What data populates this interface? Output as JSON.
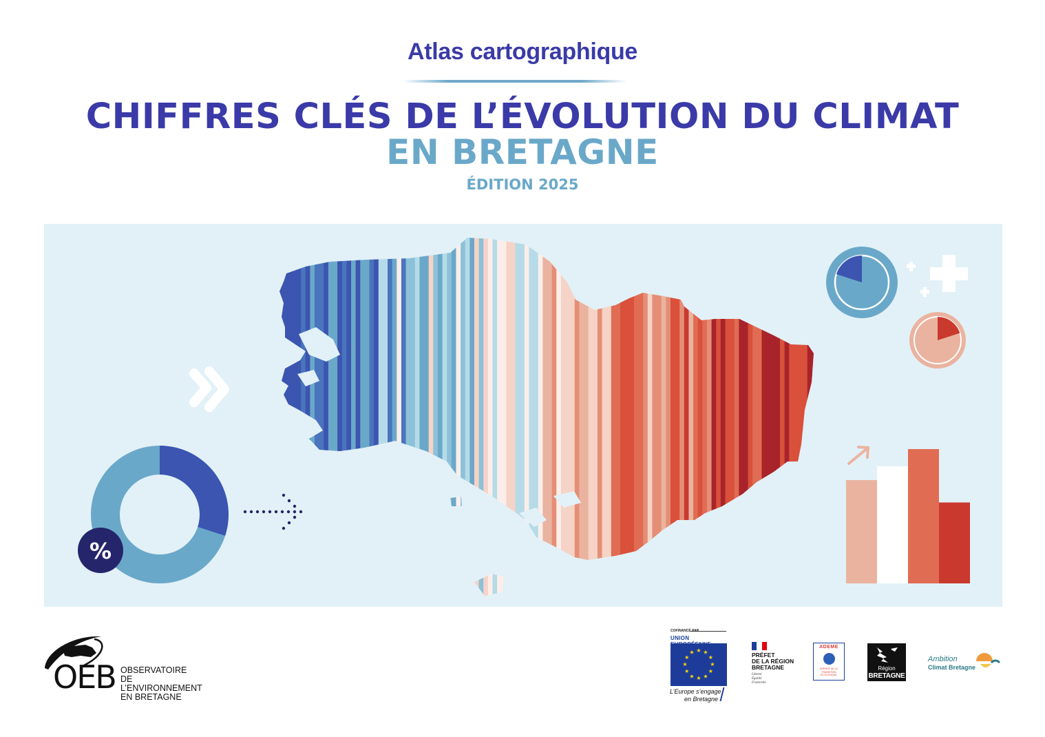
{
  "header": {
    "subtitle": "Atlas cartographique",
    "title_line1": "CHIFFRES CLÉS DE L’ÉVOLUTION DU CLIMAT",
    "title_line2": "EN BRETAGNE",
    "edition": "ÉDITION 2025"
  },
  "illustration": {
    "percent_badge": "%",
    "colors": {
      "deep_blue": "#3b55b0",
      "mid_blue": "#6aa8c9",
      "light_blue": "#b5dbe8",
      "near_white": "#fbeeea",
      "light_red": "#eab3a0",
      "mid_red": "#e06c53",
      "deep_red": "#c9392e",
      "panel_bg": "#e2f1f7",
      "navy": "#25256b"
    },
    "donut_fraction_dark": 0.3,
    "blue_pie_fraction": 0.2,
    "red_pie_fraction": 0.2,
    "bar_levels": [
      0.6,
      0.68,
      0.78,
      0.47
    ]
  },
  "footer": {
    "oeb": {
      "letters": "OEB",
      "line1": "OBSERVATOIRE",
      "line2": "DE L’ENVIRONNEMENT",
      "line3": "EN BRETAGNE"
    },
    "eu": {
      "cofinance": "COFINANCÉ PAR",
      "union": "UNION EUROPÉENNE",
      "slogan1": "L’Europe s’engage",
      "slogan2": "en Bretagne"
    },
    "prefet": {
      "line1": "PRÉFET",
      "line2": "DE LA RÉGION",
      "line3": "BRETAGNE",
      "motto1": "Liberté",
      "motto2": "Égalité",
      "motto3": "Fraternité"
    },
    "ademe": {
      "name": "ADEME",
      "sub1": "AGENCE DE LA",
      "sub2": "TRANSITION",
      "sub3": "ÉCOLOGIQUE"
    },
    "region": {
      "line1": "Région",
      "line2": "BRETAGNE"
    },
    "ambition": {
      "line1": "Ambition",
      "line2": "Climat Bretagne"
    }
  }
}
